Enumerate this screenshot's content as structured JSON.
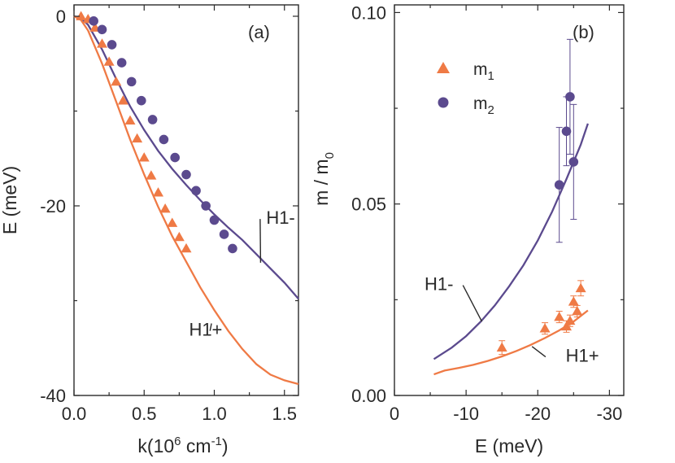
{
  "colors": {
    "orange": "#EF7A45",
    "purple": "#5B4A8E",
    "axis": "#2a2a2a"
  },
  "chart_data": [
    {
      "id": "a",
      "type": "line",
      "panel_label": "(a)",
      "xlabel": "k(10",
      "xlabel_exp": "6",
      "xlabel_unit": " cm",
      "xlabel_unit_exp": "-1",
      "xlabel_close": ")",
      "ylabel": "E (meV)",
      "xlim": [
        0,
        1.6
      ],
      "ylim": [
        -40,
        1.2
      ],
      "xticks": [
        0.0,
        0.5,
        1.0,
        1.5
      ],
      "xtick_labels": [
        "0.0",
        "0.5",
        "1.0",
        "1.5"
      ],
      "yticks": [
        0,
        -20,
        -40
      ],
      "ytick_labels": [
        "0",
        "-20",
        "-40"
      ],
      "series": [
        {
          "name": "H1-",
          "kind": "curve",
          "color": "#5B4A8E",
          "x": [
            0.0,
            0.05,
            0.1,
            0.2,
            0.3,
            0.4,
            0.5,
            0.6,
            0.7,
            0.8,
            0.9,
            1.0,
            1.1,
            1.2,
            1.3,
            1.4,
            1.5,
            1.6
          ],
          "y": [
            0,
            -0.2,
            -0.9,
            -3.5,
            -6.6,
            -9.5,
            -12.0,
            -14.2,
            -16.1,
            -17.8,
            -19.4,
            -20.9,
            -22.3,
            -23.6,
            -25.1,
            -26.6,
            -28.1,
            -29.8
          ]
        },
        {
          "name": "H1+",
          "kind": "curve",
          "color": "#EF7A45",
          "x": [
            0.0,
            0.05,
            0.1,
            0.2,
            0.3,
            0.4,
            0.5,
            0.6,
            0.7,
            0.8,
            0.9,
            1.0,
            1.1,
            1.2,
            1.3,
            1.4,
            1.5,
            1.6
          ],
          "y": [
            0,
            -0.4,
            -1.5,
            -5.0,
            -9.0,
            -13.0,
            -16.7,
            -20.1,
            -23.2,
            -25.9,
            -28.6,
            -31.0,
            -33.2,
            -35.1,
            -36.7,
            -37.8,
            -38.4,
            -38.8
          ]
        },
        {
          "name": "m1",
          "kind": "triangles",
          "color": "#EF7A45",
          "x": [
            0.05,
            0.1,
            0.15,
            0.2,
            0.25,
            0.3,
            0.35,
            0.4,
            0.45,
            0.5,
            0.55,
            0.6,
            0.65,
            0.7,
            0.75,
            0.8
          ],
          "y": [
            0,
            -0.3,
            -1.2,
            -2.9,
            -4.8,
            -6.9,
            -8.9,
            -11.0,
            -12.9,
            -14.9,
            -16.8,
            -18.6,
            -20.3,
            -21.8,
            -23.3,
            -24.5
          ]
        },
        {
          "name": "m2",
          "kind": "circles",
          "color": "#5B4A8E",
          "x": [
            0.14,
            0.2,
            0.27,
            0.34,
            0.41,
            0.48,
            0.56,
            0.64,
            0.72,
            0.8,
            0.87,
            0.94,
            1.0,
            1.07,
            1.13
          ],
          "y": [
            -0.5,
            -1.4,
            -3.0,
            -4.9,
            -6.9,
            -8.9,
            -10.9,
            -13.0,
            -14.9,
            -16.7,
            -18.4,
            -20.0,
            -21.5,
            -23.0,
            -24.5
          ]
        }
      ],
      "annotations": [
        {
          "text": "H1-",
          "series": "H1-",
          "pointer_x": 1.33,
          "pointer_y": -26.0,
          "label_x": 1.37,
          "label_y": -21.9
        },
        {
          "text": "H1+",
          "series": "H1+",
          "pointer_x": 0.98,
          "pointer_y": -32.4,
          "label_x": 0.82,
          "label_y": -33.7
        }
      ]
    },
    {
      "id": "b",
      "type": "line",
      "panel_label": "(b)",
      "xlabel": "E (meV)",
      "ylabel": "m / m",
      "ylabel_sub": "0",
      "xlim": [
        0,
        -32
      ],
      "ylim": [
        0,
        0.102
      ],
      "xticks": [
        0,
        -10,
        -20,
        -30
      ],
      "xtick_labels": [
        "0",
        "-10",
        "-20",
        "-30"
      ],
      "yticks": [
        0.0,
        0.05,
        0.1
      ],
      "ytick_labels": [
        "0.00",
        "0.05",
        "0.10"
      ],
      "legend": [
        {
          "label": "m",
          "sub": "1",
          "marker": "triangle",
          "color": "#EF7A45"
        },
        {
          "label": "m",
          "sub": "2",
          "marker": "circle",
          "color": "#5B4A8E"
        }
      ],
      "series": [
        {
          "name": "H1-",
          "kind": "curve",
          "color": "#5B4A8E",
          "x": [
            -5.5,
            -8,
            -10,
            -12,
            -14,
            -16,
            -18,
            -20,
            -22,
            -24,
            -26,
            -27
          ],
          "y": [
            0.0095,
            0.0125,
            0.0155,
            0.0192,
            0.0235,
            0.0285,
            0.034,
            0.0405,
            0.048,
            0.0565,
            0.0655,
            0.071
          ]
        },
        {
          "name": "H1+",
          "kind": "curve",
          "color": "#EF7A45",
          "x": [
            -5.5,
            -7,
            -9,
            -11,
            -13,
            -15,
            -17,
            -19,
            -21,
            -23,
            -25,
            -27
          ],
          "y": [
            0.0055,
            0.0065,
            0.0072,
            0.008,
            0.009,
            0.0102,
            0.0116,
            0.0132,
            0.015,
            0.017,
            0.0193,
            0.0222
          ]
        },
        {
          "name": "m1",
          "kind": "triangles",
          "color": "#EF7A45",
          "x": [
            -15,
            -21,
            -23,
            -24,
            -24.5,
            -25,
            -25.5,
            -26
          ],
          "y": [
            0.0125,
            0.0175,
            0.0205,
            0.018,
            0.0195,
            0.0245,
            0.022,
            0.028
          ],
          "err": [
            0.0018,
            0.0015,
            0.0015,
            0.0015,
            0.0015,
            0.0015,
            0.0015,
            0.002
          ]
        },
        {
          "name": "m2",
          "kind": "circles",
          "color": "#5B4A8E",
          "x": [
            -23,
            -24,
            -24.5,
            -25
          ],
          "y": [
            0.055,
            0.069,
            0.078,
            0.061
          ],
          "err": [
            0.015,
            0.009,
            0.015,
            0.015
          ]
        }
      ],
      "annotations": [
        {
          "text": "H1-",
          "series": "H1-",
          "pointer_x": -12.2,
          "pointer_y": 0.0193,
          "label_x": -4.2,
          "label_y": 0.0275
        },
        {
          "text": "H1+",
          "series": "H1+",
          "pointer_x": -19.2,
          "pointer_y": 0.0128,
          "label_x": -23.9,
          "label_y": 0.0088
        }
      ]
    }
  ]
}
